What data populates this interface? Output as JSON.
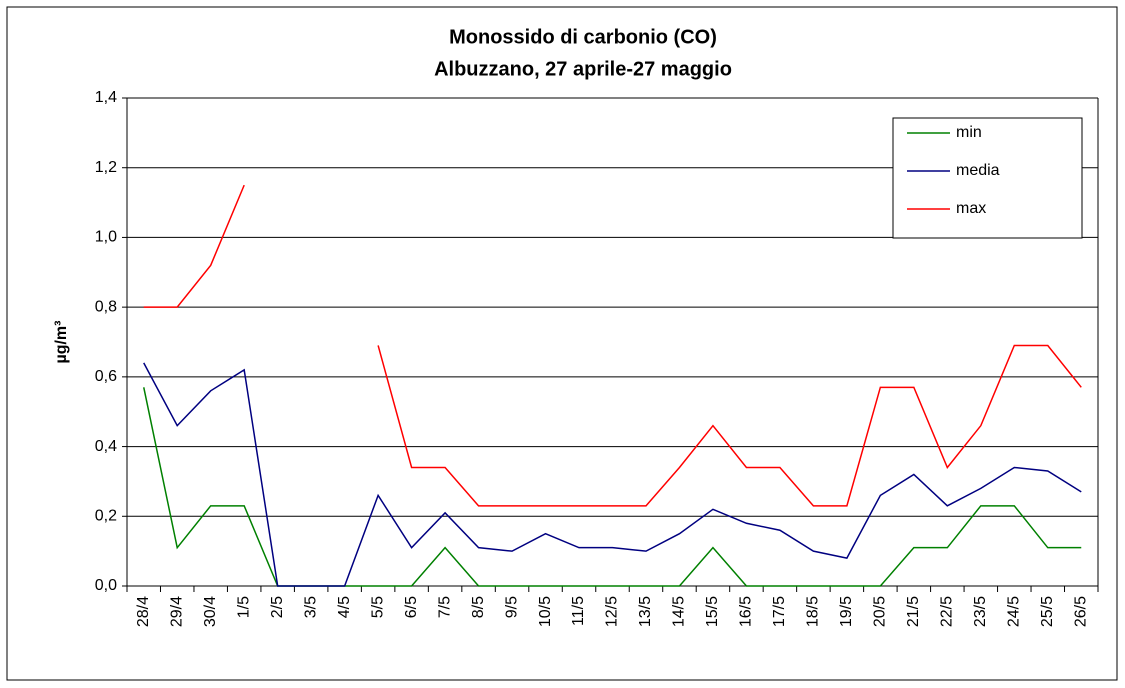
{
  "chart_data": {
    "type": "line",
    "title": "Monossido di carbonio (CO)",
    "subtitle": "Albuzzano, 27 aprile-27 maggio",
    "y_label": "µg/m³",
    "categories": [
      "28/4",
      "29/4",
      "30/4",
      "1/5",
      "2/5",
      "3/5",
      "4/5",
      "5/5",
      "6/5",
      "7/5",
      "8/5",
      "9/5",
      "10/5",
      "11/5",
      "12/5",
      "13/5",
      "14/5",
      "15/5",
      "16/5",
      "17/5",
      "18/5",
      "19/5",
      "20/5",
      "21/5",
      "22/5",
      "23/5",
      "24/5",
      "25/5",
      "26/5"
    ],
    "series": [
      {
        "name": "min",
        "color": "#008000",
        "values": [
          0.57,
          0.11,
          0.23,
          0.23,
          0,
          0,
          0,
          0,
          0,
          0.11,
          0,
          0,
          0,
          0,
          0,
          0,
          0,
          0.11,
          0,
          0,
          0,
          0,
          0,
          0.11,
          0.11,
          0.23,
          0.23,
          0.11,
          0.11
        ]
      },
      {
        "name": "media",
        "color": "#000080",
        "values": [
          0.64,
          0.46,
          0.56,
          0.62,
          0,
          0,
          0,
          0.26,
          0.11,
          0.21,
          0.11,
          0.1,
          0.15,
          0.11,
          0.11,
          0.1,
          0.15,
          0.22,
          0.18,
          0.16,
          0.1,
          0.08,
          0.26,
          0.32,
          0.23,
          0.28,
          0.34,
          0.33,
          0.27
        ]
      },
      {
        "name": "max",
        "color": "#ff0000",
        "values": [
          0.8,
          0.8,
          0.92,
          1.15,
          null,
          null,
          null,
          0.69,
          0.34,
          0.34,
          0.23,
          0.23,
          0.23,
          0.23,
          0.23,
          0.23,
          0.34,
          0.46,
          0.34,
          0.34,
          0.23,
          0.23,
          0.57,
          0.57,
          0.34,
          0.46,
          0.69,
          0.69,
          0.57
        ]
      }
    ],
    "ylim": [
      0,
      1.4
    ],
    "yticks": [
      {
        "value": 0,
        "label": "0,0"
      },
      {
        "value": 0.2,
        "label": "0,2"
      },
      {
        "value": 0.4,
        "label": "0,4"
      },
      {
        "value": 0.6,
        "label": "0,6"
      },
      {
        "value": 0.8,
        "label": "0,8"
      },
      {
        "value": 1.0,
        "label": "1,0"
      },
      {
        "value": 1.2,
        "label": "1,2"
      },
      {
        "value": 1.4,
        "label": "1,4"
      }
    ],
    "grid": true,
    "legend": "top-right"
  }
}
